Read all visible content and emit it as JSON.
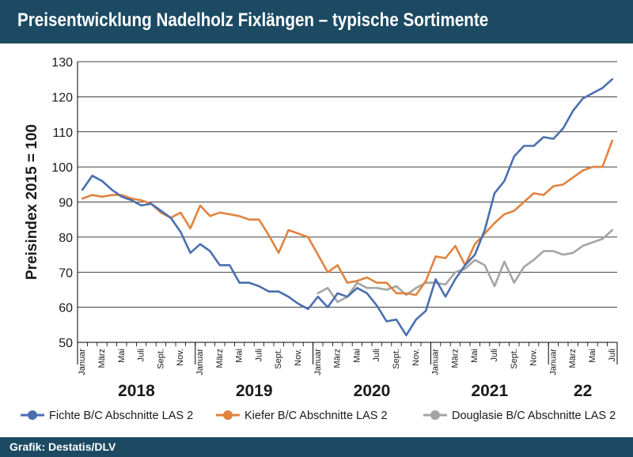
{
  "header": {
    "title": "Preisentwicklung Nadelholz Fixlängen – typische Sortimente"
  },
  "footer": {
    "source": "Grafik: Destatis/DLV"
  },
  "colors": {
    "header_bg": "#1c4a63",
    "fichte": "#4a6faf",
    "kiefer": "#e0833f",
    "douglasie": "#a4a4a4"
  },
  "chart_data": {
    "type": "line",
    "ylabel": "Preisindex 2015 = 100",
    "ylim": [
      50,
      130
    ],
    "yticks": [
      50,
      60,
      70,
      80,
      90,
      100,
      110,
      120,
      130
    ],
    "grid": "horizontal",
    "legend_position": "bottom",
    "x_tick_labels": [
      "Januar",
      "März",
      "Mai",
      "Juli",
      "Sept.",
      "Nov."
    ],
    "years": [
      {
        "label": "2018",
        "months": 12
      },
      {
        "label": "2019",
        "months": 12
      },
      {
        "label": "2020",
        "months": 12
      },
      {
        "label": "2021",
        "months": 12
      },
      {
        "label": "22",
        "months": 7
      }
    ],
    "series": [
      {
        "name": "Fichte B/C Abschnitte LAS 2",
        "color": "#4a6faf",
        "values": [
          93.5,
          97.5,
          96,
          93.5,
          91.5,
          90.5,
          89,
          89.5,
          87.5,
          85.5,
          81.5,
          75.5,
          78,
          76,
          72,
          72,
          67,
          67,
          66,
          64.5,
          64.5,
          63,
          61,
          59.5,
          63,
          60,
          64,
          63,
          65.5,
          64,
          60.5,
          56,
          56.5,
          52,
          56.5,
          59,
          68,
          63,
          68,
          72,
          75,
          82,
          92.5,
          96,
          103,
          106,
          106,
          108.5,
          108,
          111,
          116,
          119.5,
          121,
          122.5,
          125
        ]
      },
      {
        "name": "Kiefer B/C Abschnitte LAS 2",
        "color": "#e0833f",
        "values": [
          91,
          92,
          91.5,
          92,
          92,
          91,
          90.5,
          89.5,
          87,
          85.5,
          87,
          82.5,
          89,
          86,
          87,
          86.5,
          86,
          85,
          85,
          80.5,
          75.5,
          82,
          81,
          80,
          75,
          70,
          72,
          67,
          67.5,
          68.5,
          67,
          67,
          64,
          64,
          63.5,
          67.5,
          74.5,
          74,
          77.5,
          72,
          78,
          81,
          84,
          86.5,
          87.5,
          90,
          92.5,
          92,
          94.5,
          95,
          97,
          99,
          100,
          100,
          107.5
        ]
      },
      {
        "name": "Douglasie B/C Abschnitte LAS 2",
        "color": "#a4a4a4",
        "start_index": 24,
        "values": [
          64,
          65.5,
          61.5,
          63,
          67,
          65.5,
          65.5,
          65,
          66,
          63.5,
          65.5,
          67,
          67,
          66.5,
          70,
          71,
          73.5,
          72,
          66,
          73,
          67,
          71.5,
          73.5,
          76,
          76,
          75,
          75.5,
          77.5,
          78.5,
          79.5,
          82
        ]
      }
    ]
  }
}
